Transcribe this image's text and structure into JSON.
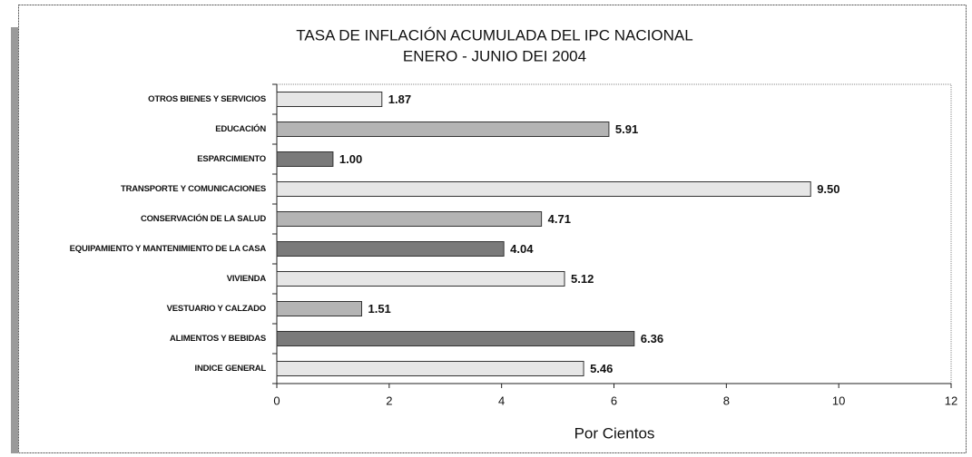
{
  "chart_data": {
    "type": "bar",
    "orientation": "horizontal",
    "title": "TASA DE INFLACIÓN ACUMULADA DEL IPC NACIONAL",
    "subtitle": "ENERO - JUNIO DEI 2004",
    "x_label": "Por Cientos",
    "categories": [
      "OTROS BIENES Y SERVICIOS",
      "EDUCACIÓN",
      "ESPARCIMIENTO",
      "TRANSPORTE Y COMUNICACIONES",
      "CONSERVACIÓN DE LA SALUD",
      "EQUIPAMIENTO Y MANTENIMIENTO DE LA CASA",
      "VIVIENDA",
      "VESTUARIO Y CALZADO",
      "ALIMENTOS Y BEBIDAS",
      "INDICE GENERAL"
    ],
    "values": [
      1.87,
      5.91,
      1,
      9.5,
      4.71,
      4.04,
      5.12,
      1.51,
      6.36,
      5.46
    ],
    "value_labels": [
      "1.87",
      "5.91",
      "1.00",
      "9.50",
      "4.71",
      "4.04",
      "5.12",
      "1.51",
      "6.36",
      "5.46"
    ],
    "colors": [
      "#e6e6e6",
      "#b4b4b4",
      "#7a7a7a",
      "#e6e6e6",
      "#b4b4b4",
      "#7a7a7a",
      "#e6e6e6",
      "#b4b4b4",
      "#7a7a7a",
      "#e6e6e6"
    ],
    "xlim": [
      0,
      12
    ],
    "xticks": [
      0,
      2,
      4,
      6,
      8,
      10,
      12
    ]
  }
}
